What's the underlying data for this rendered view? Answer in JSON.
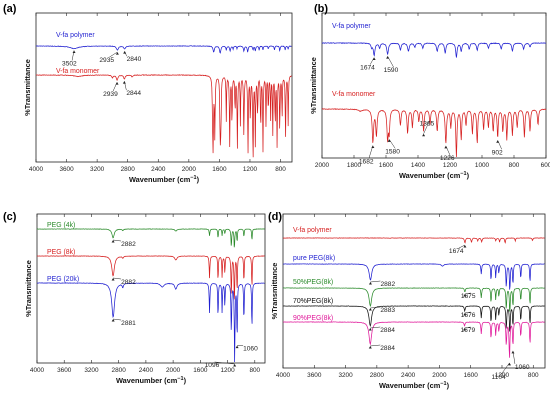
{
  "figure": {
    "panels": [
      {
        "label": "(a)",
        "xlabel": "Wavenumber (cm",
        "xlabel_sup": "−1",
        "xlabel_end": ")",
        "ylabel": "%Transmittance"
      },
      {
        "label": "(b)",
        "xlabel": "Wavenumber (cm",
        "xlabel_sup": "−1",
        "xlabel_end": ")",
        "ylabel": "%Transmittance"
      },
      {
        "label": "(c)",
        "xlabel": "Wavenumber (cm",
        "xlabel_sup": "−1",
        "xlabel_end": ")",
        "ylabel": "%Transmittance"
      },
      {
        "label": "(d)",
        "xlabel": "Wavenumber (cm",
        "xlabel_sup": "−1",
        "xlabel_end": ")",
        "ylabel": "%Transmittance"
      }
    ]
  },
  "chart_data": [
    {
      "type": "line",
      "panel": "(a)",
      "xlabel": "Wavenumber (cm−1)",
      "ylabel": "%Transmittance",
      "xlim": [
        4000,
        650
      ],
      "x_reversed": true,
      "xticks": [
        4000,
        3600,
        3200,
        2800,
        2400,
        2000,
        1600,
        1200,
        800
      ],
      "series": [
        {
          "name": "V-fa polymer",
          "color": "#1f1fd0",
          "peaks": [
            3502,
            2935,
            2840
          ]
        },
        {
          "name": "V-fa monomer",
          "color": "#d61f1f",
          "peaks": [
            2939,
            2844
          ]
        }
      ],
      "annotations": [
        "3502",
        "2935",
        "2840",
        "2939",
        "2844"
      ]
    },
    {
      "type": "line",
      "panel": "(b)",
      "xlabel": "Wavenumber (cm−1)",
      "ylabel": "%Transmittance",
      "xlim": [
        2000,
        600
      ],
      "x_reversed": true,
      "xticks": [
        2000,
        1800,
        1600,
        1400,
        1200,
        1000,
        800,
        600
      ],
      "series": [
        {
          "name": "V-fa polymer",
          "color": "#1f1fd0",
          "peaks": [
            1674,
            1590
          ]
        },
        {
          "name": "V-fa monomer",
          "color": "#d61f1f",
          "peaks": [
            1682,
            1580,
            1365,
            1226,
            902
          ]
        }
      ],
      "annotations": [
        "1674",
        "1590",
        "1682",
        "1580",
        "1365",
        "1226",
        "902"
      ]
    },
    {
      "type": "line",
      "panel": "(c)",
      "xlabel": "Wavenumber (cm−1)",
      "ylabel": "%Transmittance",
      "xlim": [
        4000,
        650
      ],
      "x_reversed": true,
      "xticks": [
        4000,
        3600,
        3200,
        2800,
        2400,
        2000,
        1600,
        1200,
        800
      ],
      "series": [
        {
          "name": "PEG (4k)",
          "color": "#2a8a2a",
          "peaks": [
            2882
          ]
        },
        {
          "name": "PEG (8k)",
          "color": "#d61f1f",
          "peaks": [
            2882
          ]
        },
        {
          "name": "PEG (20k)",
          "color": "#1f1fd0",
          "peaks": [
            2881,
            1096,
            1060
          ]
        }
      ],
      "annotations": [
        "2882",
        "2882",
        "2881",
        "1096",
        "1060"
      ]
    },
    {
      "type": "line",
      "panel": "(d)",
      "xlabel": "Wavenumber (cm−1)",
      "ylabel": "%Transmittance",
      "xlim": [
        4000,
        650
      ],
      "x_reversed": true,
      "xticks": [
        4000,
        3600,
        3200,
        2800,
        2400,
        2000,
        1600,
        1200,
        800
      ],
      "series": [
        {
          "name": "V-fa polymer",
          "color": "#d61f1f",
          "peaks": [
            1674
          ]
        },
        {
          "name": "pure PEG(8k)",
          "color": "#1f1fd0",
          "peaks": [
            2882
          ]
        },
        {
          "name": "50%PEG(8k)",
          "color": "#2a8a2a",
          "peaks": [
            2883,
            1675
          ]
        },
        {
          "name": "70%PEG(8k)",
          "color": "#111111",
          "peaks": [
            2884,
            1676
          ]
        },
        {
          "name": "90%PEG(8k)",
          "color": "#e0189a",
          "peaks": [
            2884,
            1679,
            1104,
            1060
          ]
        }
      ],
      "annotations": [
        "1674",
        "2882",
        "2883",
        "1675",
        "2884",
        "1676",
        "2884",
        "1679",
        "1104",
        "1060"
      ]
    }
  ]
}
